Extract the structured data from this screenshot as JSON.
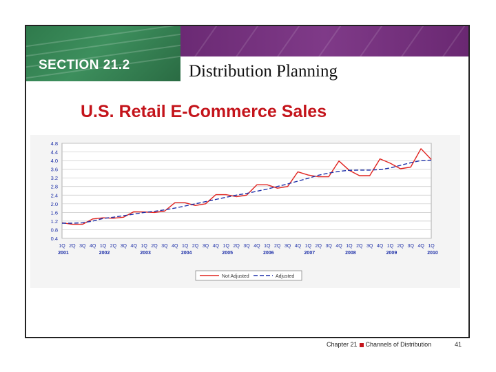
{
  "header": {
    "section": "SECTION 21.2",
    "title": "Distribution Planning"
  },
  "footer": {
    "chapter": "Chapter 21",
    "chapter_title": "Channels of Distribution",
    "page": "41"
  },
  "colors": {
    "green_banner": "#2f7a4c",
    "purple_banner": "#7f3a88",
    "heading_red": "#c4141b",
    "not_adjusted_line": "#e0231f",
    "adjusted_line": "#1d2fa8"
  },
  "chart_data": {
    "type": "line",
    "title": "U.S. Retail E-Commerce Sales",
    "ylim": [
      0.4,
      4.8
    ],
    "y_ticks": [
      "4.8",
      "4.4",
      "4.0",
      "3.6",
      "3.2",
      "2.8",
      "2.4",
      "2.0",
      "1.6",
      "1.2",
      "0.8",
      "0.4"
    ],
    "grid": true,
    "x": [
      "1Q",
      "2Q",
      "3Q",
      "4Q",
      "1Q",
      "2Q",
      "3Q",
      "4Q",
      "1Q",
      "2Q",
      "3Q",
      "4Q",
      "1Q",
      "2Q",
      "3Q",
      "4Q",
      "1Q",
      "2Q",
      "3Q",
      "4Q",
      "1Q",
      "2Q",
      "3Q",
      "4Q",
      "1Q",
      "2Q",
      "3Q",
      "4Q",
      "1Q",
      "2Q",
      "3Q",
      "4Q",
      "1Q",
      "2Q",
      "3Q",
      "4Q",
      "1Q"
    ],
    "years": [
      {
        "label": "2001",
        "at": 0
      },
      {
        "label": "2002",
        "at": 4
      },
      {
        "label": "2003",
        "at": 8
      },
      {
        "label": "2004",
        "at": 12
      },
      {
        "label": "2005",
        "at": 16
      },
      {
        "label": "2006",
        "at": 20
      },
      {
        "label": "2007",
        "at": 24
      },
      {
        "label": "2008",
        "at": 28
      },
      {
        "label": "2009",
        "at": 32
      },
      {
        "label": "2010",
        "at": 36
      }
    ],
    "legend_position": "bottom",
    "series": [
      {
        "name": "Not Adjusted",
        "style": "solid",
        "values": [
          1.12,
          1.05,
          1.05,
          1.3,
          1.35,
          1.33,
          1.38,
          1.63,
          1.62,
          1.6,
          1.66,
          2.05,
          2.05,
          1.92,
          2.0,
          2.42,
          2.42,
          2.33,
          2.4,
          2.88,
          2.88,
          2.72,
          2.8,
          3.48,
          3.33,
          3.25,
          3.25,
          3.98,
          3.55,
          3.3,
          3.3,
          4.08,
          3.88,
          3.62,
          3.7,
          4.55,
          4.05
        ]
      },
      {
        "name": "Adjusted",
        "style": "dashed",
        "values": [
          1.1,
          1.1,
          1.12,
          1.2,
          1.32,
          1.38,
          1.45,
          1.52,
          1.6,
          1.65,
          1.72,
          1.8,
          1.9,
          2.0,
          2.1,
          2.2,
          2.3,
          2.4,
          2.48,
          2.58,
          2.68,
          2.8,
          2.92,
          3.05,
          3.18,
          3.32,
          3.42,
          3.5,
          3.55,
          3.56,
          3.56,
          3.58,
          3.66,
          3.78,
          3.9,
          4.0,
          4.02
        ]
      }
    ]
  }
}
